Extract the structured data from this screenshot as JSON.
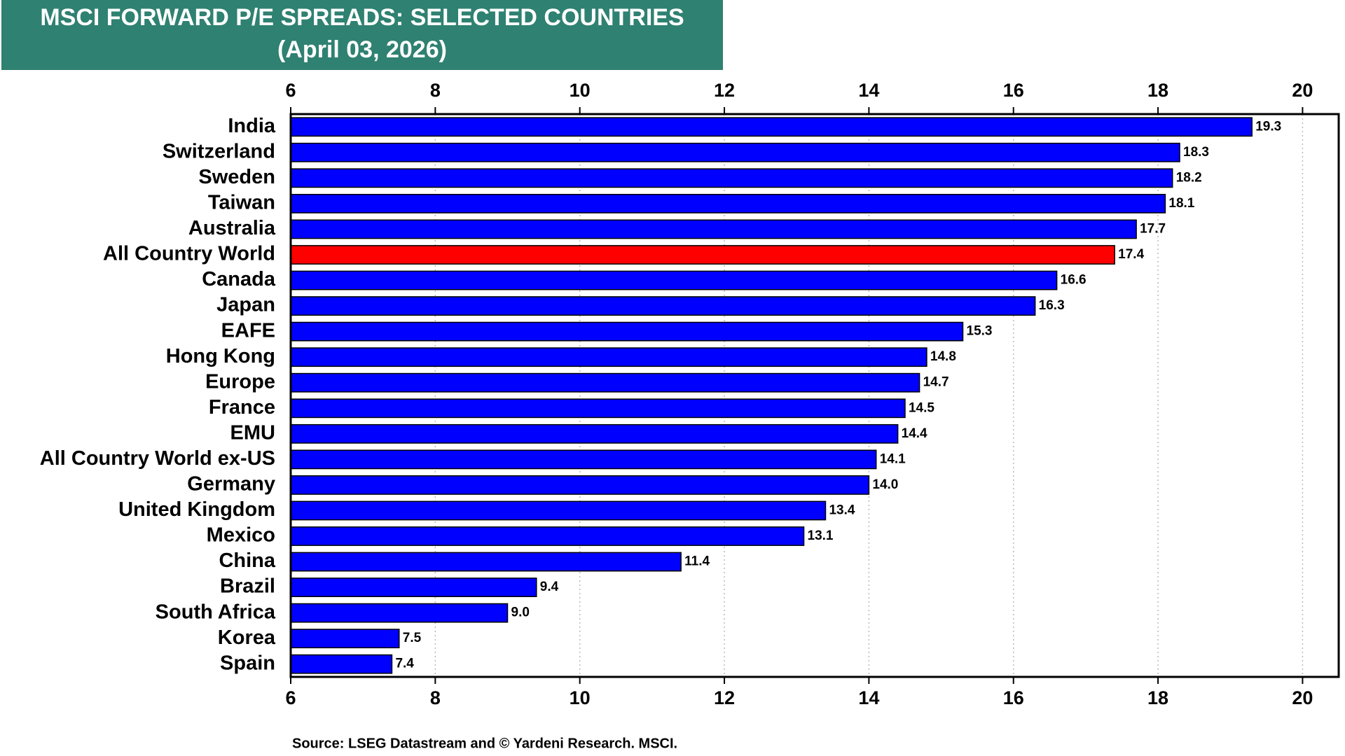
{
  "chart_data": {
    "type": "bar",
    "orientation": "horizontal",
    "title": "MSCI FORWARD P/E SPREADS: SELECTED COUNTRIES",
    "subtitle": "(April 03, 2026)",
    "source": "Source: LSEG Datastream and © Yardeni Research. MSCI.",
    "categories": [
      "India",
      "Switzerland",
      "Sweden",
      "Taiwan",
      "Australia",
      "All Country World",
      "Canada",
      "Japan",
      "EAFE",
      "Hong Kong",
      "Europe",
      "France",
      "EMU",
      "All Country World ex-US",
      "Germany",
      "United Kingdom",
      "Mexico",
      "China",
      "Brazil",
      "South Africa",
      "Korea",
      "Spain"
    ],
    "values": [
      19.3,
      18.3,
      18.2,
      18.1,
      17.7,
      17.4,
      16.6,
      16.3,
      15.3,
      14.8,
      14.7,
      14.5,
      14.4,
      14.1,
      14.0,
      13.4,
      13.1,
      11.4,
      9.4,
      9.0,
      7.5,
      7.4
    ],
    "value_labels": [
      "19.3",
      "18.3",
      "18.2",
      "18.1",
      "17.7",
      "17.4",
      "16.6",
      "16.3",
      "15.3",
      "14.8",
      "14.7",
      "14.5",
      "14.4",
      "14.1",
      "14.0",
      "13.4",
      "13.1",
      "11.4",
      "9.4",
      "9.0",
      "7.5",
      "7.4"
    ],
    "colors": [
      "#0000ff",
      "#0000ff",
      "#0000ff",
      "#0000ff",
      "#0000ff",
      "#ff0000",
      "#0000ff",
      "#0000ff",
      "#0000ff",
      "#0000ff",
      "#0000ff",
      "#0000ff",
      "#0000ff",
      "#0000ff",
      "#0000ff",
      "#0000ff",
      "#0000ff",
      "#0000ff",
      "#0000ff",
      "#0000ff",
      "#0000ff",
      "#0000ff"
    ],
    "xlim": [
      6,
      20.5
    ],
    "xticks": [
      6,
      8,
      10,
      12,
      14,
      16,
      18,
      20
    ],
    "grid": true
  }
}
